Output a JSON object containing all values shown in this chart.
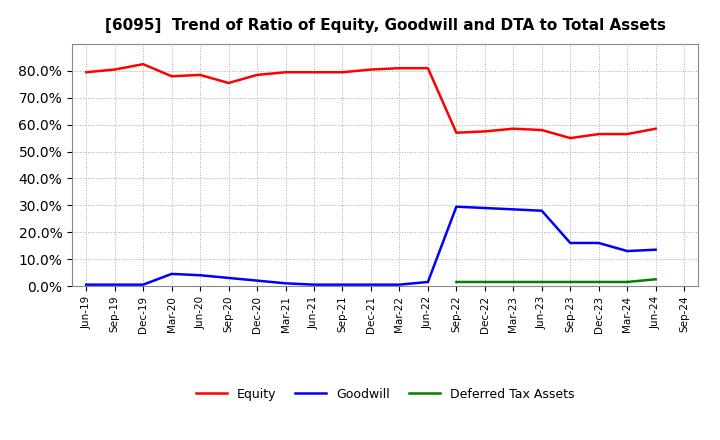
{
  "title": "[6095]  Trend of Ratio of Equity, Goodwill and DTA to Total Assets",
  "labels": [
    "Jun-19",
    "Sep-19",
    "Dec-19",
    "Mar-20",
    "Jun-20",
    "Sep-20",
    "Dec-20",
    "Mar-21",
    "Jun-21",
    "Sep-21",
    "Dec-21",
    "Mar-22",
    "Jun-22",
    "Sep-22",
    "Dec-22",
    "Mar-23",
    "Jun-23",
    "Sep-23",
    "Dec-23",
    "Mar-24",
    "Jun-24",
    "Sep-24"
  ],
  "equity": [
    79.5,
    80.5,
    82.5,
    78.0,
    78.5,
    75.5,
    78.5,
    79.5,
    79.5,
    79.5,
    80.5,
    81.0,
    81.0,
    57.0,
    57.5,
    58.5,
    58.0,
    55.0,
    56.5,
    56.5,
    58.5,
    null
  ],
  "goodwill": [
    0.5,
    0.5,
    0.5,
    4.5,
    4.0,
    3.0,
    2.0,
    1.0,
    0.5,
    0.5,
    0.5,
    0.5,
    1.5,
    29.5,
    29.0,
    28.5,
    28.0,
    16.0,
    16.0,
    13.0,
    13.5,
    null
  ],
  "dta": [
    null,
    null,
    null,
    null,
    null,
    null,
    null,
    null,
    null,
    null,
    null,
    null,
    null,
    1.5,
    1.5,
    1.5,
    1.5,
    1.5,
    1.5,
    1.5,
    2.5,
    null
  ],
  "equity_color": "#FF0000",
  "goodwill_color": "#0000FF",
  "dta_color": "#008000",
  "ylim": [
    0,
    90
  ],
  "yticks": [
    0,
    10,
    20,
    30,
    40,
    50,
    60,
    70,
    80
  ],
  "grid_color": "#aaaaaa",
  "bg_color": "#ffffff",
  "plot_bg_color": "#ffffff",
  "legend_labels": [
    "Equity",
    "Goodwill",
    "Deferred Tax Assets"
  ]
}
